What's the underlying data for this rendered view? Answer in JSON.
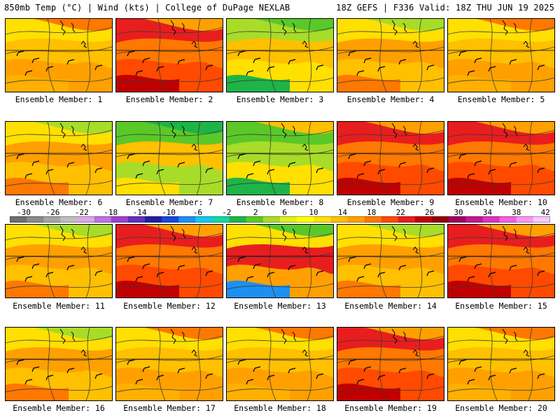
{
  "header": {
    "left": "850mb Temp (°C) | Wind (kts) | College of DuPage NEXLAB",
    "right": "18Z GEFS | F336 Valid: 18Z THU JUN 19 2025"
  },
  "colorbar": {
    "labels": [
      "-30",
      "-26",
      "-22",
      "-18",
      "-14",
      "-10",
      "-6",
      "-2",
      "2",
      "6",
      "10",
      "14",
      "18",
      "22",
      "26",
      "30",
      "34",
      "38",
      "42"
    ],
    "colors": [
      "#6e6e6e",
      "#8a8a8a",
      "#a4a4a4",
      "#bdbdbd",
      "#d8a8e8",
      "#c070e0",
      "#a040d0",
      "#6030c0",
      "#2020a0",
      "#1848e0",
      "#1c90f0",
      "#14c8e8",
      "#10d8a0",
      "#1eb448",
      "#5ac828",
      "#a8dc28",
      "#e0f018",
      "#ffff00",
      "#ffe000",
      "#ffc000",
      "#ffa000",
      "#ff7800",
      "#ff4a00",
      "#e81e1e",
      "#c00000",
      "#900000",
      "#a00060",
      "#c01890",
      "#e030c0",
      "#f060e0",
      "#f898f0",
      "#fcc8fc"
    ]
  },
  "members": [
    {
      "label": "Ensemble Member: 1",
      "scheme": "warm"
    },
    {
      "label": "Ensemble Member: 2",
      "scheme": "hot_sw"
    },
    {
      "label": "Ensemble Member: 3",
      "scheme": "cool_n"
    },
    {
      "label": "Ensemble Member: 4",
      "scheme": "mild"
    },
    {
      "label": "Ensemble Member: 5",
      "scheme": "warm"
    },
    {
      "label": "Ensemble Member: 6",
      "scheme": "mild"
    },
    {
      "label": "Ensemble Member: 7",
      "scheme": "cool_e"
    },
    {
      "label": "Ensemble Member: 8",
      "scheme": "cool_w"
    },
    {
      "label": "Ensemble Member: 9",
      "scheme": "hot_sw"
    },
    {
      "label": "Ensemble Member: 10",
      "scheme": "hot_sw"
    },
    {
      "label": "Ensemble Member: 11",
      "scheme": "mild"
    },
    {
      "label": "Ensemble Member: 12",
      "scheme": "hot_sw"
    },
    {
      "label": "Ensemble Member: 13",
      "scheme": "cold_ne"
    },
    {
      "label": "Ensemble Member: 14",
      "scheme": "mild"
    },
    {
      "label": "Ensemble Member: 15",
      "scheme": "hot_sw"
    },
    {
      "label": "Ensemble Member: 16",
      "scheme": "mild"
    },
    {
      "label": "Ensemble Member: 17",
      "scheme": "warm"
    },
    {
      "label": "Ensemble Member: 18",
      "scheme": "warm"
    },
    {
      "label": "Ensemble Member: 19",
      "scheme": "hot_sw"
    },
    {
      "label": "Ensemble Member: 20",
      "scheme": "warm"
    }
  ]
}
